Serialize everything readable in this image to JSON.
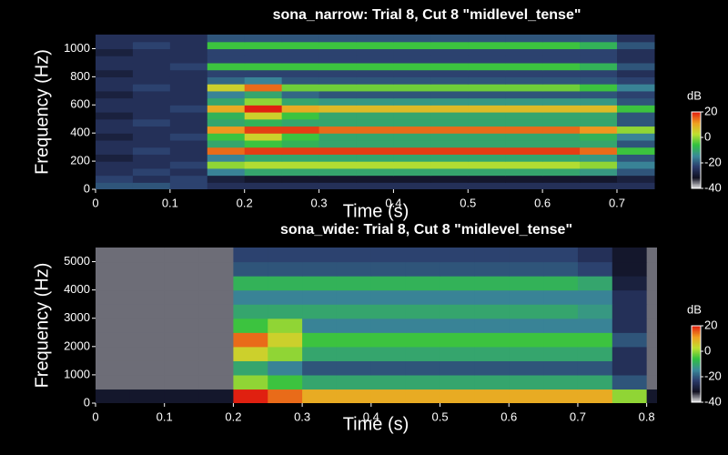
{
  "chart_data": [
    {
      "type": "heatmap",
      "title": "sona_narrow: Trial 8, Cut 8 \"midlevel_tense\"",
      "xlabel": "Time (s)",
      "ylabel": "Frequency (Hz)",
      "xlim": [
        0,
        0.755
      ],
      "ylim": [
        0,
        1100
      ],
      "xticks": [
        0,
        0.1,
        0.2,
        0.3,
        0.4,
        0.5,
        0.6,
        0.7
      ],
      "yticks": [
        0,
        200,
        400,
        600,
        800,
        1000
      ],
      "xbins": [
        0,
        0.05,
        0.1,
        0.15,
        0.2,
        0.25,
        0.3,
        0.35,
        0.4,
        0.45,
        0.5,
        0.55,
        0.6,
        0.65,
        0.7,
        0.75
      ],
      "ybins": [
        0,
        50,
        100,
        150,
        200,
        250,
        300,
        350,
        400,
        450,
        500,
        550,
        600,
        650,
        700,
        750,
        800,
        850,
        900,
        950,
        1000,
        1050,
        1100
      ],
      "z": [
        [
          -20,
          -20,
          -22,
          -25,
          -25,
          -25,
          -25,
          -25,
          -25,
          -25,
          -25,
          -25,
          -25,
          -25,
          -25
        ],
        [
          -22,
          -25,
          -22,
          -28,
          -30,
          -30,
          -30,
          -30,
          -30,
          -30,
          -30,
          -30,
          -30,
          -30,
          -28
        ],
        [
          -25,
          -22,
          -25,
          -15,
          -10,
          -10,
          -10,
          -10,
          -10,
          -10,
          -10,
          -10,
          -10,
          -12,
          -20
        ],
        [
          -25,
          -25,
          -22,
          0,
          2,
          2,
          2,
          2,
          2,
          2,
          2,
          2,
          2,
          0,
          -15
        ],
        [
          -28,
          -25,
          -25,
          -15,
          -10,
          -10,
          -10,
          -10,
          -10,
          -10,
          -10,
          -10,
          -10,
          -12,
          -20
        ],
        [
          -25,
          -22,
          -25,
          15,
          18,
          18,
          18,
          18,
          18,
          18,
          18,
          18,
          18,
          15,
          -5
        ],
        [
          -25,
          -25,
          -25,
          -10,
          -5,
          -8,
          -10,
          -10,
          -10,
          -10,
          -10,
          -10,
          -10,
          -10,
          -20
        ],
        [
          -28,
          -25,
          -22,
          -5,
          5,
          -5,
          -10,
          -10,
          -10,
          -10,
          -10,
          -10,
          -10,
          -8,
          -15
        ],
        [
          -25,
          -25,
          -25,
          12,
          18,
          18,
          15,
          15,
          15,
          15,
          15,
          15,
          15,
          12,
          0
        ],
        [
          -25,
          -22,
          -25,
          -10,
          -8,
          -10,
          -10,
          -10,
          -10,
          -10,
          -10,
          -10,
          -10,
          -10,
          -20
        ],
        [
          -28,
          -25,
          -25,
          -8,
          5,
          -5,
          -10,
          -10,
          -10,
          -10,
          -10,
          -10,
          -10,
          -10,
          -20
        ],
        [
          -25,
          -25,
          -22,
          10,
          20,
          10,
          8,
          8,
          8,
          8,
          8,
          8,
          8,
          8,
          -5
        ],
        [
          -25,
          -25,
          -25,
          -10,
          0,
          -10,
          -12,
          -12,
          -12,
          -12,
          -12,
          -12,
          -12,
          -12,
          -20
        ],
        [
          -28,
          -25,
          -25,
          -15,
          -10,
          -18,
          -20,
          -20,
          -20,
          -20,
          -20,
          -20,
          -20,
          -20,
          -22
        ],
        [
          -25,
          -22,
          -25,
          5,
          15,
          -2,
          -2,
          -2,
          -2,
          -2,
          -2,
          -2,
          -2,
          -5,
          -15
        ],
        [
          -25,
          -25,
          -25,
          -18,
          -15,
          -20,
          -20,
          -20,
          -20,
          -20,
          -20,
          -20,
          -20,
          -20,
          -22
        ],
        [
          -28,
          -25,
          -25,
          -22,
          -22,
          -22,
          -22,
          -22,
          -22,
          -22,
          -22,
          -22,
          -22,
          -22,
          -25
        ],
        [
          -25,
          -25,
          -22,
          -5,
          -5,
          -5,
          -5,
          -5,
          -5,
          -5,
          -5,
          -5,
          -5,
          -8,
          -20
        ],
        [
          -25,
          -25,
          -25,
          -22,
          -22,
          -22,
          -22,
          -22,
          -22,
          -22,
          -22,
          -22,
          -22,
          -22,
          -25
        ],
        [
          -28,
          -25,
          -25,
          -22,
          -22,
          -22,
          -22,
          -22,
          -22,
          -22,
          -22,
          -22,
          -22,
          -22,
          -25
        ],
        [
          -25,
          -22,
          -25,
          -5,
          -5,
          -5,
          -5,
          -5,
          -5,
          -5,
          -5,
          -5,
          -5,
          -8,
          -20
        ],
        [
          -25,
          -25,
          -25,
          -20,
          -20,
          -20,
          -20,
          -20,
          -20,
          -20,
          -20,
          -20,
          -20,
          -20,
          -25
        ]
      ],
      "colorbar": {
        "label": "dB",
        "clim": [
          -40,
          20
        ],
        "ticks": [
          -40,
          -20,
          0,
          20
        ]
      },
      "colormap": [
        "#f0f0f0",
        "#101020",
        "#2a3a6a",
        "#3a8a9a",
        "#30c040",
        "#c0e030",
        "#f0a020",
        "#e02010"
      ]
    },
    {
      "type": "heatmap",
      "title": "sona_wide: Trial 8, Cut 8 \"midlevel_tense\"",
      "xlabel": "Time (s)",
      "ylabel": "Frequency (Hz)",
      "xlim": [
        0,
        0.815
      ],
      "ylim": [
        0,
        5500
      ],
      "xticks": [
        0,
        0.1,
        0.2,
        0.3,
        0.4,
        0.5,
        0.6,
        0.7,
        0.8
      ],
      "yticks": [
        0,
        1000,
        2000,
        3000,
        4000,
        5000
      ],
      "xbins": [
        0,
        0.05,
        0.1,
        0.15,
        0.2,
        0.25,
        0.3,
        0.35,
        0.4,
        0.45,
        0.5,
        0.55,
        0.6,
        0.65,
        0.7,
        0.75,
        0.8,
        0.815
      ],
      "ybins": [
        0,
        500,
        1000,
        1500,
        2000,
        2500,
        3000,
        3500,
        4000,
        4500,
        5000,
        5500
      ],
      "z": [
        [
          -30,
          -30,
          -30,
          -30,
          20,
          15,
          10,
          10,
          10,
          10,
          10,
          10,
          10,
          10,
          10,
          0,
          -30
        ],
        [
          -35,
          -35,
          -35,
          -35,
          0,
          -5,
          -10,
          -10,
          -10,
          -10,
          -10,
          -10,
          -10,
          -10,
          -10,
          -20,
          -35
        ],
        [
          -35,
          -35,
          -35,
          -35,
          -10,
          -15,
          -20,
          -20,
          -20,
          -20,
          -20,
          -20,
          -20,
          -20,
          -20,
          -25,
          -35
        ],
        [
          -35,
          -35,
          -35,
          -35,
          5,
          0,
          -10,
          -10,
          -10,
          -10,
          -10,
          -10,
          -10,
          -10,
          -10,
          -25,
          -35
        ],
        [
          -35,
          -35,
          -35,
          -35,
          15,
          5,
          -5,
          -5,
          -5,
          -5,
          -5,
          -5,
          -5,
          -5,
          -5,
          -20,
          -35
        ],
        [
          -35,
          -35,
          -35,
          -35,
          -5,
          0,
          -15,
          -15,
          -15,
          -15,
          -15,
          -15,
          -15,
          -15,
          -15,
          -25,
          -35
        ],
        [
          -35,
          -35,
          -35,
          -35,
          -10,
          -10,
          -10,
          -10,
          -10,
          -10,
          -10,
          -10,
          -10,
          -10,
          -12,
          -25,
          -35
        ],
        [
          -35,
          -35,
          -35,
          -35,
          -15,
          -15,
          -15,
          -15,
          -15,
          -15,
          -15,
          -15,
          -15,
          -15,
          -15,
          -25,
          -35
        ],
        [
          -35,
          -35,
          -35,
          -35,
          -8,
          -8,
          -8,
          -8,
          -8,
          -8,
          -8,
          -8,
          -8,
          -8,
          -10,
          -28,
          -35
        ],
        [
          -35,
          -35,
          -35,
          -35,
          -20,
          -20,
          -20,
          -20,
          -20,
          -20,
          -20,
          -20,
          -20,
          -20,
          -22,
          -30,
          -35
        ],
        [
          -35,
          -35,
          -35,
          -35,
          -22,
          -22,
          -22,
          -22,
          -22,
          -22,
          -22,
          -22,
          -22,
          -22,
          -25,
          -30,
          -35
        ]
      ],
      "colorbar": {
        "label": "dB",
        "clim": [
          -40,
          20
        ],
        "ticks": [
          -40,
          -20,
          0,
          20
        ]
      },
      "colormap": [
        "#f0f0f0",
        "#101020",
        "#2a3a6a",
        "#3a8a9a",
        "#30c040",
        "#c0e030",
        "#f0a020",
        "#e02010"
      ]
    }
  ]
}
